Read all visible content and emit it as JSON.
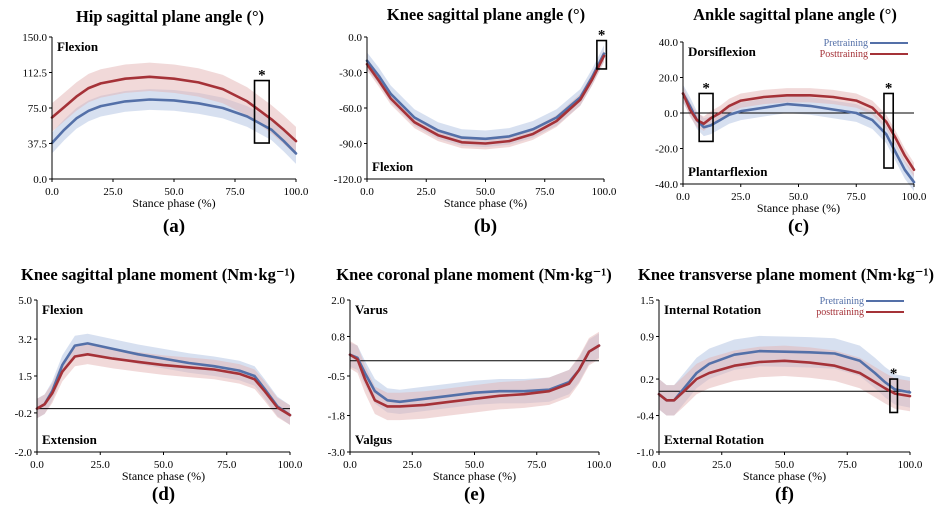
{
  "figure": {
    "colors": {
      "pretraining": "#5470a8",
      "posttraining": "#a53238",
      "pre_band": "#b7c7e3",
      "post_band": "#e3b3b4"
    },
    "x_tick_labels": [
      "0.0",
      "25.0",
      "50.0",
      "75.0",
      "100.0"
    ],
    "xlabel": "Stance phase (%)"
  },
  "chart_data": [
    {
      "id": "a",
      "type": "line",
      "title": "Hip sagittal plane angle (°)",
      "panel_label": "(a)",
      "xlabel": "Stance phase (%)",
      "ylim": [
        0,
        150
      ],
      "y_ticks": [
        0,
        37.5,
        75,
        112.5,
        150
      ],
      "y_tick_labels": [
        "0.0",
        "37.5",
        "75.0",
        "112.5",
        "150.0"
      ],
      "annotations": [
        {
          "text": "Flexion",
          "pos": "top-left"
        }
      ],
      "legend": null,
      "zero_line": false,
      "significance": [
        {
          "x_range": [
            83,
            89
          ],
          "y_range": [
            38,
            104
          ]
        }
      ],
      "series": [
        {
          "name": "Pretraining",
          "x": [
            0,
            5,
            10,
            15,
            20,
            30,
            40,
            50,
            60,
            70,
            80,
            90,
            95,
            100
          ],
          "values": [
            38,
            52,
            64,
            72,
            77,
            82,
            84,
            83,
            80,
            75,
            66,
            52,
            40,
            27
          ],
          "band": 11
        },
        {
          "name": "Posttraining",
          "x": [
            0,
            5,
            10,
            15,
            20,
            30,
            40,
            50,
            60,
            70,
            80,
            90,
            95,
            100
          ],
          "values": [
            65,
            76,
            87,
            96,
            101,
            106,
            108,
            106,
            102,
            95,
            82,
            63,
            52,
            40
          ],
          "band": 15
        }
      ]
    },
    {
      "id": "b",
      "type": "line",
      "title": "Knee sagittal plane angle (°)",
      "panel_label": "(b)",
      "xlabel": "Stance phase (%)",
      "ylim": [
        -120,
        0
      ],
      "y_ticks": [
        -120,
        -90,
        -60,
        -30,
        0
      ],
      "y_tick_labels": [
        "-120.0",
        "-90.0",
        "-60.0",
        "-30.0",
        "0.0"
      ],
      "annotations": [
        {
          "text": "Flexion",
          "pos": "bottom-left"
        }
      ],
      "legend": null,
      "zero_line": false,
      "significance": [
        {
          "x_range": [
            97,
            101
          ],
          "y_range": [
            -27,
            -3
          ]
        }
      ],
      "series": [
        {
          "name": "Pretraining",
          "x": [
            0,
            5,
            10,
            20,
            30,
            40,
            50,
            60,
            70,
            80,
            90,
            95,
            100
          ],
          "values": [
            -20,
            -33,
            -48,
            -68,
            -79,
            -85,
            -86,
            -84,
            -78,
            -68,
            -51,
            -34,
            -14
          ],
          "band": 7
        },
        {
          "name": "Posttraining",
          "x": [
            0,
            5,
            10,
            20,
            30,
            40,
            50,
            60,
            70,
            80,
            90,
            95,
            100
          ],
          "values": [
            -23,
            -37,
            -52,
            -72,
            -83,
            -89,
            -90,
            -88,
            -82,
            -71,
            -53,
            -36,
            -16
          ],
          "band": 5
        }
      ]
    },
    {
      "id": "c",
      "type": "line",
      "title": "Ankle sagittal plane angle (°)",
      "panel_label": "(c)",
      "xlabel": "Stance phase (%)",
      "ylim": [
        -40,
        40
      ],
      "y_ticks": [
        -40,
        -20,
        0,
        20,
        40
      ],
      "y_tick_labels": [
        "-40.0",
        "-20.0",
        "0.0",
        "20.0",
        "40.0"
      ],
      "annotations": [
        {
          "text": "Dorsiflexion",
          "pos": "top-left"
        },
        {
          "text": "Plantarflexion",
          "pos": "bottom-left"
        }
      ],
      "legend": {
        "entries": [
          "Pretraining",
          "Posttraining"
        ],
        "pos": "top-right"
      },
      "zero_line": true,
      "significance": [
        {
          "x_range": [
            7,
            13
          ],
          "y_range": [
            -16,
            11
          ]
        },
        {
          "x_range": [
            87,
            91
          ],
          "y_range": [
            -31,
            11
          ]
        }
      ],
      "series": [
        {
          "name": "Pretraining",
          "x": [
            0,
            3,
            6,
            9,
            12,
            16,
            20,
            25,
            35,
            45,
            55,
            65,
            75,
            82,
            88,
            92,
            96,
            100
          ],
          "values": [
            11,
            4,
            -4,
            -8,
            -7,
            -4,
            -1,
            1,
            3,
            5,
            4,
            2,
            0,
            -4,
            -12,
            -22,
            -32,
            -39
          ],
          "band": 5
        },
        {
          "name": "Posttraining",
          "x": [
            0,
            3,
            6,
            9,
            12,
            16,
            20,
            25,
            35,
            45,
            55,
            65,
            75,
            82,
            88,
            92,
            96,
            100
          ],
          "values": [
            11,
            2,
            -4,
            -6,
            -3,
            0,
            4,
            7,
            9,
            10,
            10,
            9,
            7,
            3,
            -5,
            -14,
            -24,
            -32
          ],
          "band": 4
        }
      ]
    },
    {
      "id": "d",
      "type": "line",
      "title": "Knee sagittal plane moment (Nm·kg⁻¹)",
      "panel_label": "(d)",
      "xlabel": "Stance phase (%)",
      "ylim": [
        -2.0,
        5.0
      ],
      "y_ticks": [
        -2.0,
        -0.2,
        1.5,
        3.2,
        5.0
      ],
      "y_tick_labels": [
        "-2.0",
        "-0.2",
        "1.5",
        "3.2",
        "5.0"
      ],
      "annotations": [
        {
          "text": "Flexion",
          "pos": "top-left"
        },
        {
          "text": "Extension",
          "pos": "bottom-left"
        }
      ],
      "legend": null,
      "zero_line": true,
      "zero_value": 0,
      "significance": [],
      "series": [
        {
          "name": "Pretraining",
          "x": [
            0,
            3,
            6,
            10,
            15,
            20,
            30,
            40,
            50,
            60,
            70,
            80,
            86,
            90,
            95,
            100
          ],
          "values": [
            0,
            0.2,
            0.8,
            2.0,
            2.9,
            3.0,
            2.75,
            2.5,
            2.3,
            2.1,
            1.95,
            1.75,
            1.5,
            0.9,
            0.1,
            -0.3
          ],
          "band": 0.45
        },
        {
          "name": "Posttraining",
          "x": [
            0,
            3,
            6,
            10,
            15,
            20,
            30,
            40,
            50,
            60,
            70,
            80,
            86,
            90,
            95,
            100
          ],
          "values": [
            0,
            0.2,
            0.7,
            1.7,
            2.4,
            2.5,
            2.3,
            2.15,
            2.0,
            1.9,
            1.8,
            1.6,
            1.35,
            0.8,
            0.05,
            -0.3
          ],
          "band": 0.45
        }
      ]
    },
    {
      "id": "e",
      "type": "line",
      "title": "Knee coronal plane moment (Nm·kg⁻¹)",
      "panel_label": "(e)",
      "xlabel": "Stance phase (%)",
      "ylim": [
        -3.0,
        2.0
      ],
      "y_ticks": [
        -3.0,
        -1.8,
        -0.5,
        0.8,
        2.0
      ],
      "y_tick_labels": [
        "-3.0",
        "-1.8",
        "-0.5",
        "0.8",
        "2.0"
      ],
      "annotations": [
        {
          "text": "Varus",
          "pos": "top-left"
        },
        {
          "text": "Valgus",
          "pos": "bottom-left"
        }
      ],
      "legend": null,
      "zero_line": true,
      "zero_value": 0,
      "significance": [],
      "series": [
        {
          "name": "Pretraining",
          "x": [
            0,
            3,
            6,
            10,
            15,
            20,
            30,
            40,
            50,
            60,
            70,
            80,
            88,
            92,
            96,
            100
          ],
          "values": [
            0.2,
            0.1,
            -0.4,
            -1.0,
            -1.3,
            -1.35,
            -1.25,
            -1.15,
            -1.05,
            -1.0,
            -1.0,
            -0.95,
            -0.7,
            -0.3,
            0.3,
            0.5
          ],
          "band": 0.4
        },
        {
          "name": "Posttraining",
          "x": [
            0,
            3,
            6,
            10,
            15,
            20,
            30,
            40,
            50,
            60,
            70,
            80,
            88,
            92,
            96,
            100
          ],
          "values": [
            0.2,
            0.05,
            -0.6,
            -1.3,
            -1.5,
            -1.5,
            -1.45,
            -1.35,
            -1.25,
            -1.15,
            -1.1,
            -1.0,
            -0.75,
            -0.3,
            0.3,
            0.5
          ],
          "band": 0.45
        }
      ]
    },
    {
      "id": "f",
      "type": "line",
      "title": "Knee transverse plane moment (Nm·kg⁻¹)",
      "panel_label": "(f)",
      "xlabel": "Stance phase (%)",
      "ylim": [
        -1.0,
        1.5
      ],
      "y_ticks": [
        -1.0,
        -0.4,
        0.2,
        0.9,
        1.5
      ],
      "y_tick_labels": [
        "-1.0",
        "-0.4",
        "0.2",
        "0.9",
        "1.5"
      ],
      "annotations": [
        {
          "text": "Internal Rotation",
          "pos": "top-left"
        },
        {
          "text": "External Rotation",
          "pos": "bottom-left"
        }
      ],
      "legend": {
        "entries": [
          "Pretraining",
          "posttraining"
        ],
        "pos": "top-right"
      },
      "zero_line": true,
      "zero_value": 0,
      "significance": [
        {
          "x_range": [
            92,
            95
          ],
          "y_range": [
            -0.35,
            0.2
          ]
        }
      ],
      "series": [
        {
          "name": "Pretraining",
          "x": [
            0,
            3,
            6,
            10,
            15,
            20,
            30,
            40,
            50,
            60,
            70,
            80,
            86,
            90,
            94,
            100
          ],
          "values": [
            -0.05,
            -0.15,
            -0.15,
            0.05,
            0.3,
            0.45,
            0.6,
            0.66,
            0.65,
            0.64,
            0.62,
            0.5,
            0.3,
            0.15,
            0.03,
            -0.02
          ],
          "band": 0.25
        },
        {
          "name": "Posttraining",
          "x": [
            0,
            3,
            6,
            10,
            15,
            20,
            30,
            40,
            50,
            60,
            70,
            80,
            86,
            90,
            94,
            100
          ],
          "values": [
            -0.05,
            -0.15,
            -0.15,
            0.0,
            0.2,
            0.3,
            0.42,
            0.48,
            0.5,
            0.47,
            0.42,
            0.3,
            0.15,
            0.05,
            -0.04,
            -0.08
          ],
          "band": 0.25
        }
      ]
    }
  ]
}
